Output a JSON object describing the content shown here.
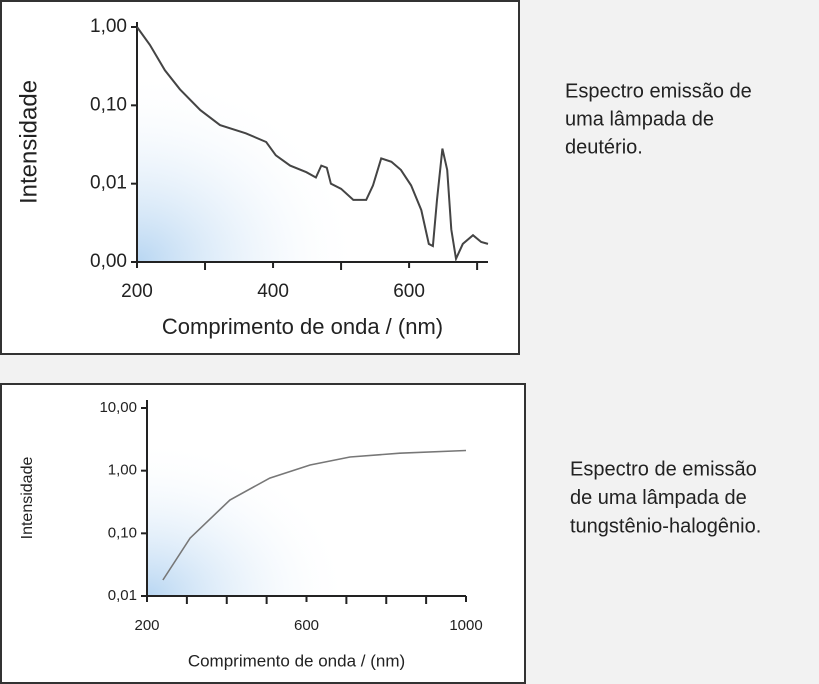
{
  "chart_data": [
    {
      "type": "line",
      "yscale": "log",
      "ylabel": "Intensidade",
      "xlabel": "Comprimento de onda / (nm)",
      "xlim": [
        200,
        716
      ],
      "xticks": [
        200,
        400,
        600
      ],
      "minor_xticks": [
        300,
        500,
        700
      ],
      "ylim": [
        0.001,
        1
      ],
      "yticks": [
        {
          "value": 0.001,
          "label": "0,00"
        },
        {
          "value": 0.01,
          "label": "0,01"
        },
        {
          "value": 0.1,
          "label": "0,10"
        },
        {
          "value": 1,
          "label": "1,00"
        }
      ],
      "color": "#444444",
      "x": [
        200,
        219,
        241,
        263,
        293,
        322,
        360,
        390,
        404,
        425,
        449,
        463,
        471,
        479,
        485,
        500,
        518,
        537,
        547,
        559,
        574,
        588,
        603,
        618,
        629,
        635,
        641,
        649,
        656,
        662,
        669,
        679,
        694,
        706,
        716
      ],
      "values": [
        1,
        0.59,
        0.28,
        0.16,
        0.087,
        0.056,
        0.044,
        0.034,
        0.023,
        0.017,
        0.014,
        0.012,
        0.017,
        0.016,
        0.01,
        0.0086,
        0.0062,
        0.0062,
        0.0095,
        0.021,
        0.019,
        0.015,
        0.0095,
        0.0046,
        0.0017,
        0.0016,
        0.0062,
        0.028,
        0.015,
        0.0026,
        0.0011,
        0.0017,
        0.0022,
        0.0018,
        0.0017
      ],
      "caption": [
        "Espectro emissão de",
        "uma lâmpada de",
        "deutério."
      ]
    },
    {
      "type": "line",
      "yscale": "log",
      "ylabel": "Intensidade",
      "xlabel": "Comprimento de onda / (nm)",
      "xlim": [
        200,
        1000
      ],
      "xticks": [
        200,
        600,
        1000
      ],
      "minor_xticks": [
        300,
        400,
        500,
        700,
        800,
        900
      ],
      "ylim": [
        0.01,
        10
      ],
      "yticks": [
        {
          "value": 0.01,
          "label": "0,01"
        },
        {
          "value": 0.1,
          "label": "0,10"
        },
        {
          "value": 1,
          "label": "1,00"
        },
        {
          "value": 10,
          "label": "10,00"
        }
      ],
      "color": "#777777",
      "x": [
        240,
        308,
        408,
        508,
        609,
        709,
        834,
        1000
      ],
      "values": [
        0.018,
        0.084,
        0.34,
        0.76,
        1.23,
        1.65,
        1.9,
        2.1
      ],
      "caption": [
        "Espectro de emissão",
        "de uma lâmpada de",
        "tungstênio-halogênio."
      ]
    }
  ]
}
